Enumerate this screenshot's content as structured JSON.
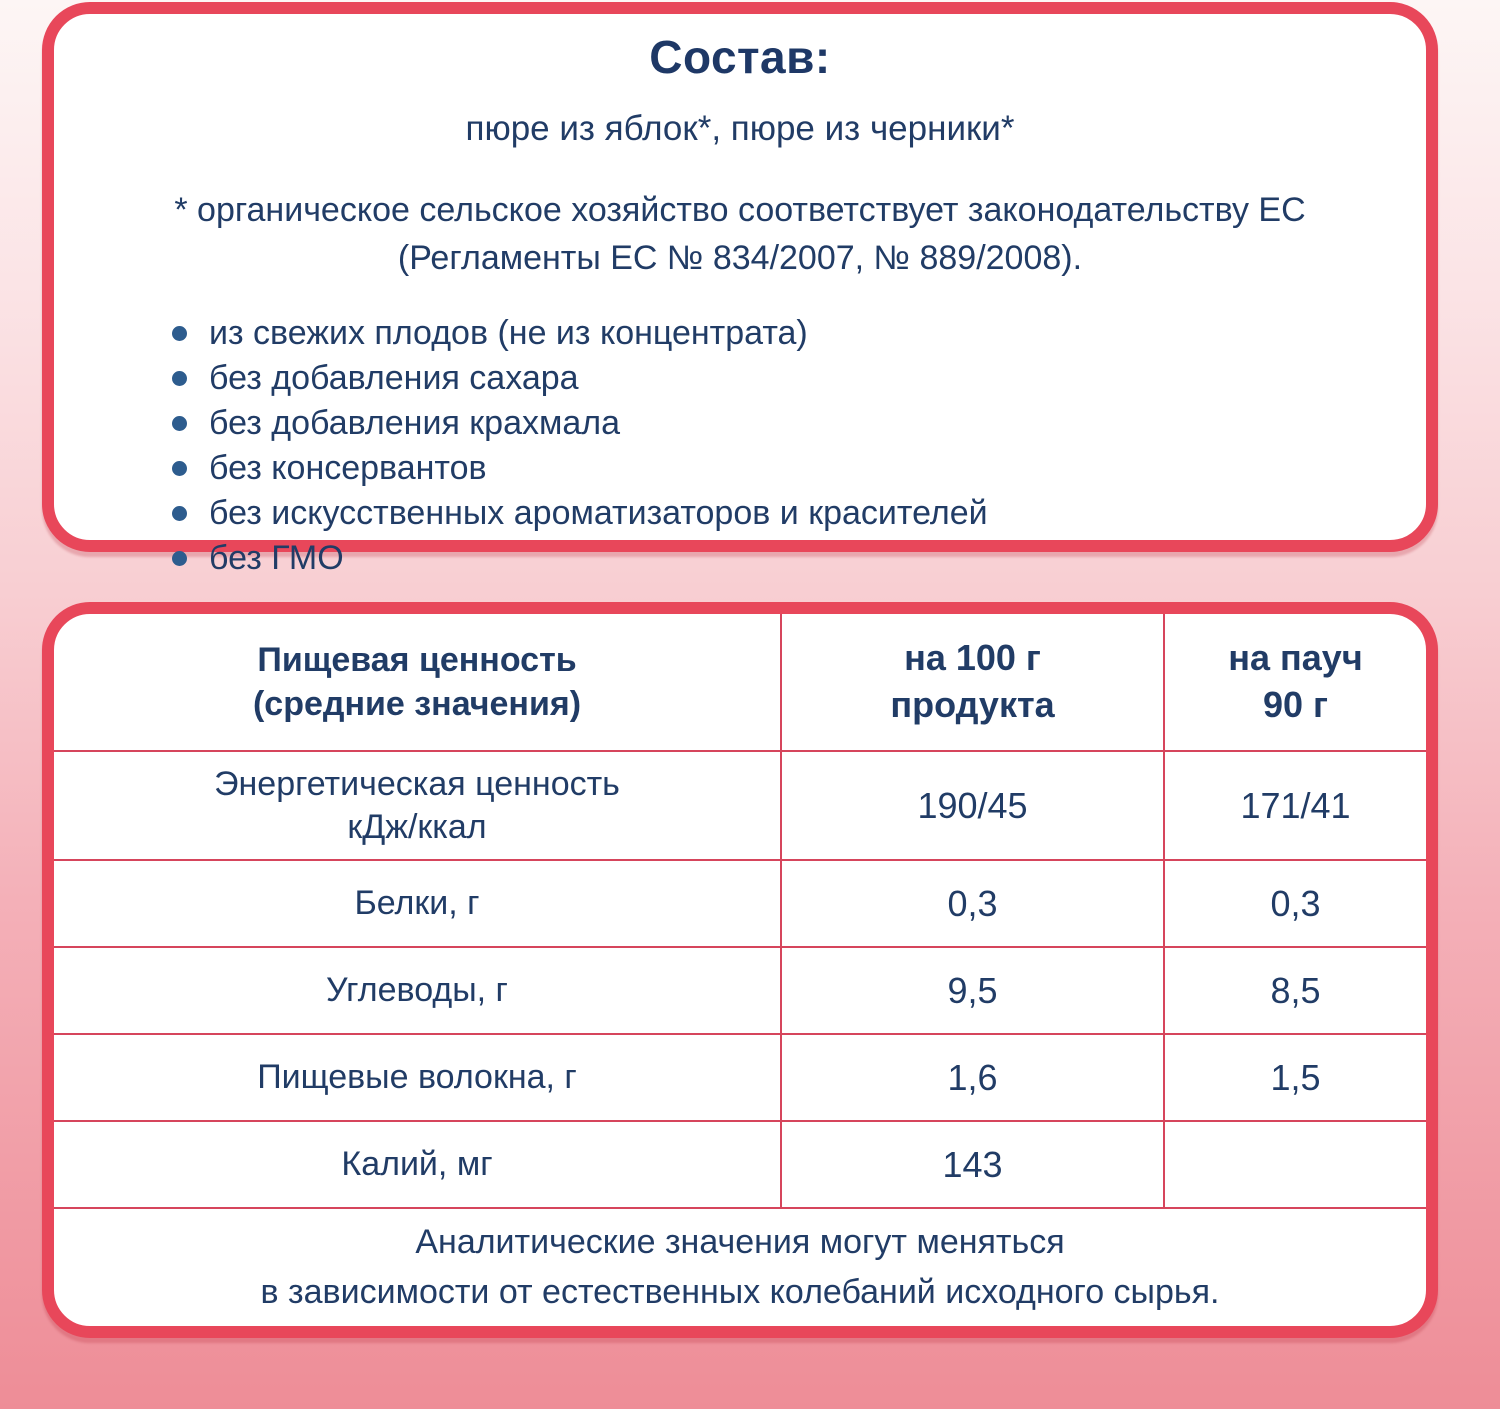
{
  "palette": {
    "card_border": "#e8475a",
    "table_line": "#d6455c",
    "text_navy": "#213c66",
    "bullet_blue": "#2d5c8e",
    "bg_top": "#fdf6f5",
    "bg_bottom": "#ee8d97"
  },
  "composition": {
    "title": "Состав:",
    "ingredients": "пюре из яблок*, пюре из черники*",
    "note": "* органическое сельское хозяйство соответствует законодательству ЕС\n(Регламенты ЕС № 834/2007, № 889/2008).",
    "bullets": [
      "из свежих плодов (не из концентрата)",
      "без добавления сахара",
      "без добавления крахмала",
      "без консервантов",
      "без искусственных ароматизаторов и красителей",
      "без ГМО"
    ]
  },
  "nutrition": {
    "header": {
      "col1": "Пищевая ценность\n(средние значения)",
      "col2": "на 100 г\nпродукта",
      "col3": "на пауч\n90 г"
    },
    "rows": [
      {
        "label": "Энергетическая ценность\nкДж/ккал",
        "per100": "190/45",
        "perPouch": "171/41"
      },
      {
        "label": "Белки, г",
        "per100": "0,3",
        "perPouch": "0,3"
      },
      {
        "label": "Углеводы, г",
        "per100": "9,5",
        "perPouch": "8,5"
      },
      {
        "label": "Пищевые волокна, г",
        "per100": "1,6",
        "perPouch": "1,5"
      },
      {
        "label": "Калий, мг",
        "per100": "143",
        "perPouch": ""
      }
    ],
    "footnote": "Аналитические значения могут меняться\nв зависимости от естественных колебаний исходного сырья."
  }
}
